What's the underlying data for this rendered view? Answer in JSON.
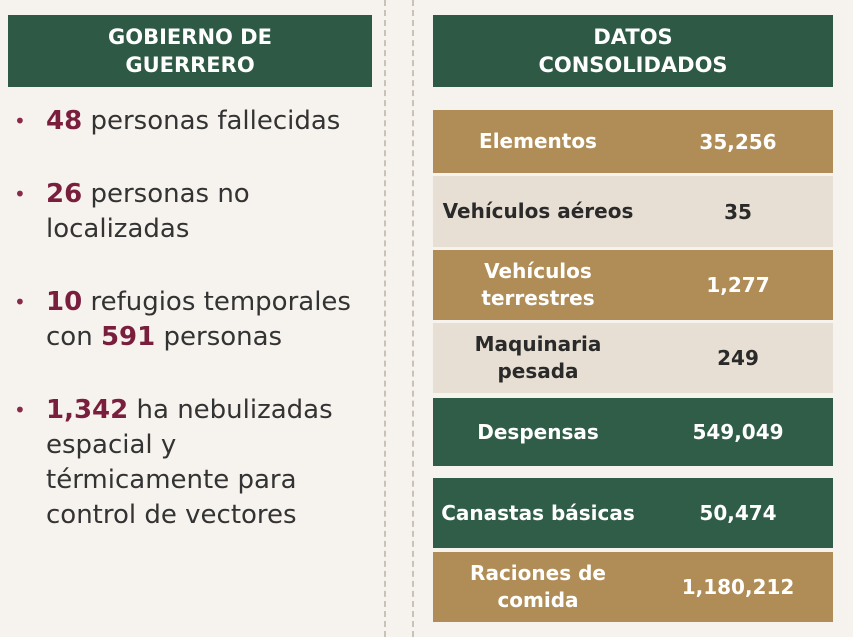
{
  "left": {
    "title": "GOBIERNO DE GUERRERO",
    "bullets": [
      [
        {
          "text": "48",
          "bold": true
        },
        {
          "text": " personas fallecidas"
        }
      ],
      [
        {
          "text": "26",
          "bold": true
        },
        {
          "text": " personas no localizadas"
        }
      ],
      [
        {
          "text": "10",
          "bold": true
        },
        {
          "text": " refugios temporales con "
        },
        {
          "text": "591",
          "bold": true
        },
        {
          "text": " personas"
        }
      ],
      [
        {
          "text": "1,342",
          "bold": true
        },
        {
          "text": " ha nebulizadas espacial y térmicamente para control de vectores"
        }
      ]
    ]
  },
  "right": {
    "title": "DATOS CONSOLIDADOS",
    "rows": [
      [
        "Elementos",
        "35,256"
      ],
      [
        "Vehículos aéreos",
        "35"
      ],
      [
        "Vehículos terrestres",
        "1,277"
      ],
      [
        "Maquinaria pesada",
        "249"
      ],
      [
        "Despensas",
        "549,049"
      ],
      [
        "Canastas básicas",
        "50,474"
      ],
      [
        "Raciones de comida",
        "1,180,212"
      ]
    ]
  }
}
